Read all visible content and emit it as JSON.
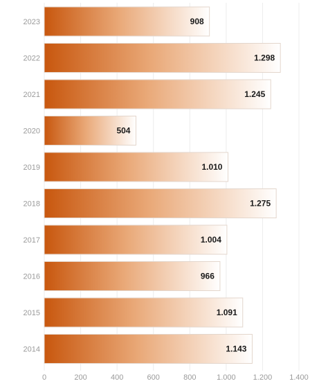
{
  "chart_data": {
    "type": "bar",
    "orientation": "horizontal",
    "categories": [
      "2023",
      "2022",
      "2021",
      "2020",
      "2019",
      "2018",
      "2017",
      "2016",
      "2015",
      "2014"
    ],
    "values": [
      908,
      1298,
      1245,
      504,
      1010,
      1275,
      1004,
      966,
      1091,
      1143
    ],
    "value_labels": [
      "908",
      "1.298",
      "1.245",
      "504",
      "1.010",
      "1.275",
      "1.004",
      "966",
      "1.091",
      "1.143"
    ],
    "x_ticks": [
      0,
      200,
      400,
      600,
      800,
      1000,
      1200,
      1400
    ],
    "x_tick_labels": [
      "0",
      "200",
      "400",
      "600",
      "800",
      "1.000",
      "1.200",
      "1.400"
    ],
    "xlim": [
      0,
      1400
    ],
    "grid": true,
    "legend": "none",
    "title": "",
    "xlabel": "",
    "ylabel": "",
    "colors": {
      "bar_start": "#c8570e",
      "bar_end": "#ffffff",
      "bar_border": "#e3d6cc"
    }
  }
}
